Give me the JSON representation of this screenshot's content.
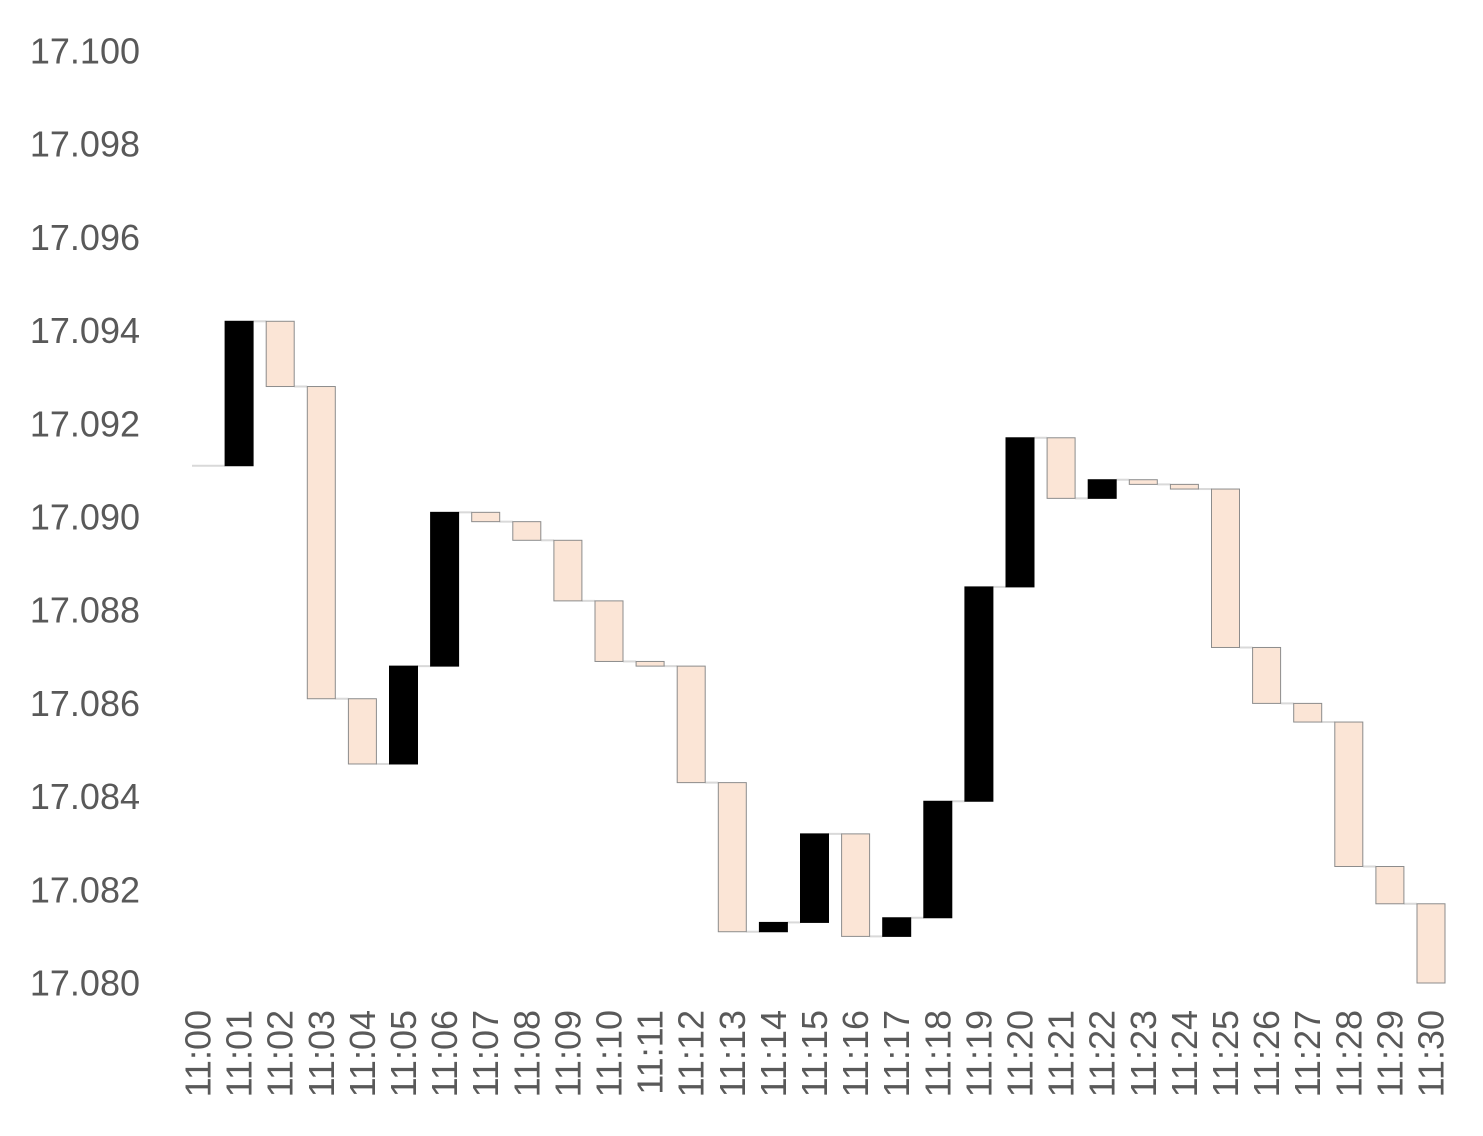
{
  "chart_data": {
    "type": "waterfall",
    "title": "",
    "xlabel": "",
    "ylabel": "",
    "ylim": [
      17.08,
      17.1
    ],
    "yticks": [
      "17.080",
      "17.082",
      "17.084",
      "17.086",
      "17.088",
      "17.090",
      "17.092",
      "17.094",
      "17.096",
      "17.098",
      "17.100"
    ],
    "grid": false,
    "legend": "none",
    "categories": [
      "11:00",
      "11:01",
      "11:02",
      "11:03",
      "11:04",
      "11:05",
      "11:06",
      "11:07",
      "11:08",
      "11:09",
      "11:10",
      "11:11",
      "11:12",
      "11:13",
      "11:14",
      "11:15",
      "11:16",
      "11:17",
      "11:18",
      "11:19",
      "11:20",
      "11:21",
      "11:22",
      "11:23",
      "11:24",
      "11:25",
      "11:26",
      "11:27",
      "11:28",
      "11:29",
      "11:30"
    ],
    "values": [
      17.0911,
      17.0942,
      17.0928,
      17.0861,
      17.0847,
      17.0868,
      17.0901,
      17.0899,
      17.0895,
      17.0882,
      17.0869,
      17.0868,
      17.0843,
      17.0811,
      17.0813,
      17.0832,
      17.081,
      17.0814,
      17.0839,
      17.0885,
      17.0917,
      17.0904,
      17.0908,
      17.0907,
      17.0906,
      17.0872,
      17.086,
      17.0856,
      17.0825,
      17.0817,
      17.08
    ],
    "colors": {
      "increase": "#000000",
      "decrease": "#fbe5d6",
      "decrease_border": "#8c8c8c",
      "connector": "#d9d9d9",
      "tick_text": "#595959"
    }
  }
}
